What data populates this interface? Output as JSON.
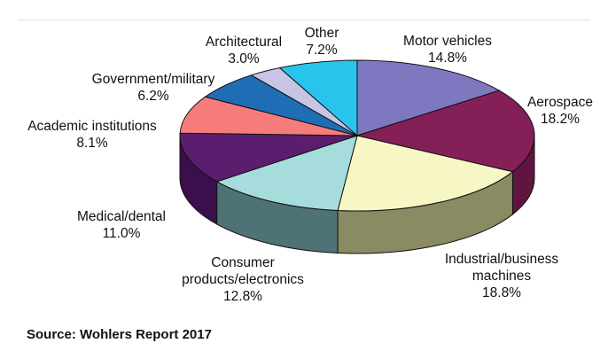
{
  "chart_data": {
    "type": "pie",
    "title": "",
    "style": "3d-exploded-none",
    "unit": "%",
    "slices": [
      {
        "label": "Motor vehicles",
        "value": 14.8,
        "value_text": "14.8%",
        "color": "#7e78c0",
        "side_color": "#5a5496"
      },
      {
        "label": "Aerospace",
        "value": 18.2,
        "value_text": "18.2%",
        "color": "#851f58",
        "side_color": "#5f1540"
      },
      {
        "label": "Industrial/business machines",
        "value": 18.8,
        "value_text": "18.8%",
        "color": "#f7f7c5",
        "side_color": "#8a8a63"
      },
      {
        "label": "Consumer products/electronics",
        "value": 12.8,
        "value_text": "12.8%",
        "color": "#a6dcdc",
        "side_color": "#4e7276"
      },
      {
        "label": "Medical/dental",
        "value": 11.0,
        "value_text": "11.0%",
        "color": "#5b1e6e",
        "side_color": "#3b0f4c"
      },
      {
        "label": "Academic institutions",
        "value": 8.1,
        "value_text": "8.1%",
        "color": "#f67c7c",
        "side_color": "#b85b5b"
      },
      {
        "label": "Government/military",
        "value": 6.2,
        "value_text": "6.2%",
        "color": "#1f6eb5",
        "side_color": "#164f82"
      },
      {
        "label": "Architectural",
        "value": 3.0,
        "value_text": "3.0%",
        "color": "#c7c4e5",
        "side_color": "#8f8cb0"
      },
      {
        "label": "Other",
        "value": 7.2,
        "value_text": "7.2%",
        "color": "#29c4ec",
        "side_color": "#1c8cab"
      }
    ]
  },
  "labels": [
    {
      "line1": "Motor vehicles",
      "line2": "14.8%"
    },
    {
      "line1": "Aerospace",
      "line2": "18.2%"
    },
    {
      "line1": "Industrial/business",
      "line2": "machines",
      "line3": "18.8%"
    },
    {
      "line1": "Consumer",
      "line2": "products/electronics",
      "line3": "12.8%"
    },
    {
      "line1": "Medical/dental",
      "line2": "11.0%"
    },
    {
      "line1": "Academic institutions",
      "line2": "8.1%"
    },
    {
      "line1": "Government/military",
      "line2": "6.2%"
    },
    {
      "line1": "Architectural",
      "line2": "3.0%"
    },
    {
      "line1": "Other",
      "line2": "7.2%"
    }
  ],
  "source": "Source: Wohlers Report 2017"
}
